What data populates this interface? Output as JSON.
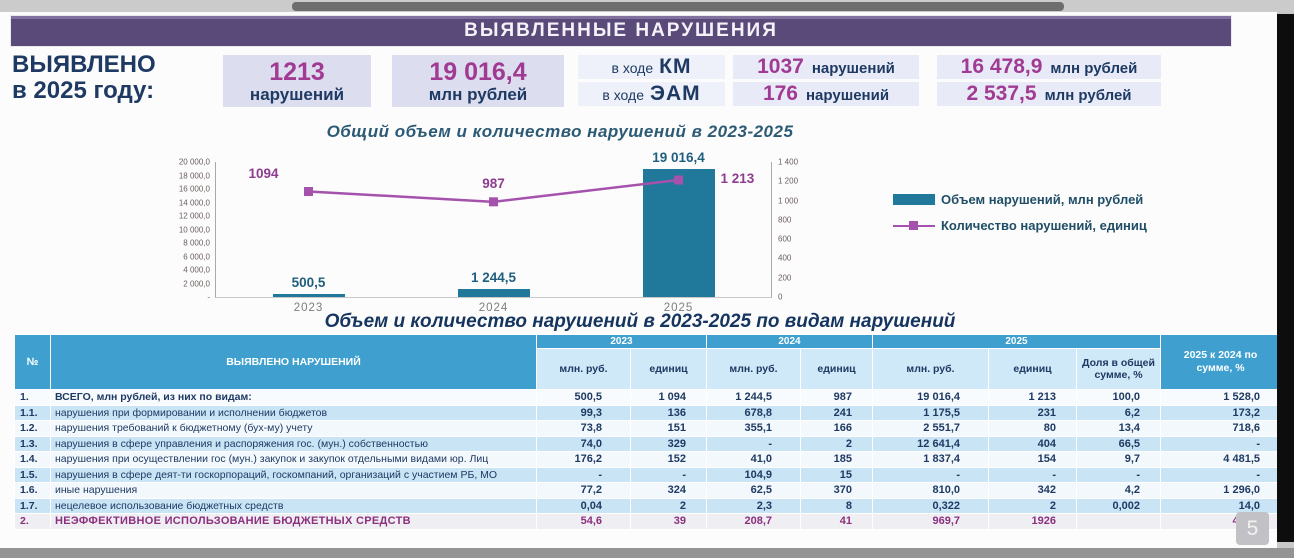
{
  "page": {
    "number": "5"
  },
  "header": {
    "title": "ВЫЯВЛЕННЫЕ НАРУШЕНИЯ"
  },
  "summary": {
    "label_line1": "ВЫЯВЛЕНО",
    "label_line2": "в 2025 году:",
    "total_violations": {
      "value": "1213",
      "unit": "нарушений"
    },
    "total_amount": {
      "value": "19 016,4",
      "unit": "млн рублей"
    },
    "km": {
      "prefix": "в ходе",
      "code": "КМ",
      "count": "1037",
      "count_unit": "нарушений",
      "amount": "16 478,9",
      "amount_unit": "млн рублей"
    },
    "eam": {
      "prefix": "в ходе",
      "code": "ЭАМ",
      "count": "176",
      "count_unit": "нарушений",
      "amount": "2 537,5",
      "amount_unit": "млн рублей"
    }
  },
  "chart_data": {
    "type": "bar",
    "subtype": "combo bar+line, dual axis",
    "title": "Общий объем и количество нарушений в 2023-2025",
    "categories": [
      "2023",
      "2024",
      "2025"
    ],
    "series": [
      {
        "name": "Объем нарушений, млн рублей",
        "type": "bar",
        "axis": "left",
        "color": "#20799a",
        "values": [
          500.5,
          1244.5,
          19016.4
        ],
        "labels": [
          "500,5",
          "1 244,5",
          "19 016,4"
        ]
      },
      {
        "name": "Количество нарушений, единиц",
        "type": "line",
        "axis": "right",
        "color": "#a452ab",
        "values": [
          1094,
          987,
          1213
        ],
        "labels": [
          "1094",
          "987",
          "1 213"
        ]
      }
    ],
    "left_axis": {
      "min": 0,
      "max": 20000,
      "ticks": [
        "20 000,0",
        "18 000,0",
        "16 000,0",
        "14 000,0",
        "12 000,0",
        "10 000,0",
        "8 000,0",
        "6 000,0",
        "4 000,0",
        "2 000,0",
        "-"
      ]
    },
    "right_axis": {
      "min": 0,
      "max": 1400,
      "ticks": [
        "1 400",
        "1 200",
        "1 000",
        "800",
        "600",
        "400",
        "200",
        "0"
      ]
    },
    "legend_position": "right",
    "grid": false
  },
  "table": {
    "title": "Объем и количество нарушений в 2023-2025 по видам нарушений",
    "col_num": "№",
    "col_name": "ВЫЯВЛЕНО НАРУШЕНИЙ",
    "years": [
      "2023",
      "2024",
      "2025"
    ],
    "sub_mln": "млн. руб.",
    "sub_units": "единиц",
    "col_share": "Доля в общей сумме, %",
    "col_ratio": "2025 к 2024 по сумме, %",
    "rows": [
      {
        "num": "1.",
        "style": "total",
        "name": "ВСЕГО, млн рублей, из них по видам:",
        "values": [
          "500,5",
          "1 094",
          "1 244,5",
          "987",
          "19 016,4",
          "1 213",
          "100,0",
          "1 528,0"
        ]
      },
      {
        "num": "1.1.",
        "name": "нарушения при формировании и исполнении бюджетов",
        "values": [
          "99,3",
          "136",
          "678,8",
          "241",
          "1 175,5",
          "231",
          "6,2",
          "173,2"
        ]
      },
      {
        "num": "1.2.",
        "name": "нарушения требований к бюджетному (бух-му) учету",
        "values": [
          "73,8",
          "151",
          "355,1",
          "166",
          "2 551,7",
          "80",
          "13,4",
          "718,6"
        ]
      },
      {
        "num": "1.3.",
        "name": "нарушения в сфере управления и распоряжения гос. (мун.) собственностью",
        "values": [
          "74,0",
          "329",
          "-",
          "2",
          "12 641,4",
          "404",
          "66,5",
          "-"
        ]
      },
      {
        "num": "1.4.",
        "name": "нарушения при осуществлении гос (мун.) закупок и закупок отдельными видами юр. Лиц",
        "values": [
          "176,2",
          "152",
          "41,0",
          "185",
          "1 837,4",
          "154",
          "9,7",
          "4 481,5"
        ]
      },
      {
        "num": "1.5.",
        "name": "нарушения в сфере деят-ти госкорпораций, госкомпаний, организаций с участием РБ, МО",
        "values": [
          "-",
          "-",
          "104,9",
          "15",
          "-",
          "-",
          "-",
          "-"
        ]
      },
      {
        "num": "1.6.",
        "name": "иные нарушения",
        "values": [
          "77,2",
          "324",
          "62,5",
          "370",
          "810,0",
          "342",
          "4,2",
          "1 296,0"
        ]
      },
      {
        "num": "1.7.",
        "name": "нецелевое использование бюджетных средств",
        "values": [
          "0,04",
          "2",
          "2,3",
          "8",
          "0,322",
          "2",
          "0,002",
          "14,0"
        ]
      },
      {
        "num": "2.",
        "style": "ineffective",
        "name": "НЕЭФФЕКТИВНОЕ ИСПОЛЬЗОВАНИЕ БЮДЖЕТНЫХ СРЕДСТВ",
        "values": [
          "54,6",
          "39",
          "208,7",
          "41",
          "969,7",
          "1926",
          "",
          "464,6"
        ]
      }
    ]
  },
  "colors": {
    "title_bar": "#5a4a7a",
    "navy_text": "#1e3a63",
    "magenta_number": "#a03a92",
    "bar_series": "#20799a",
    "line_series": "#a452ab",
    "table_header": "#3fa0d0",
    "table_shade_row": "#c8e4f5"
  }
}
